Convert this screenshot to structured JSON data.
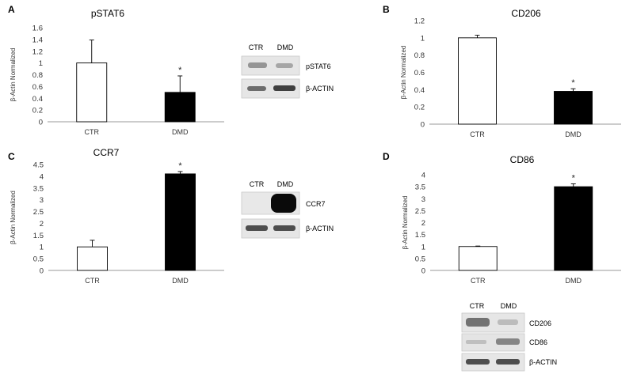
{
  "chart_data": [
    {
      "type": "bar",
      "panel_letter": "A",
      "title": "pSTAT6",
      "ylabel": "β-Actin Normalized",
      "categories": [
        "CTR",
        "DMD"
      ],
      "values": [
        1.0,
        0.5
      ],
      "errors": [
        0.39,
        0.28
      ],
      "significance": [
        "",
        "*"
      ],
      "bar_colors": [
        "#ffffff",
        "#000000"
      ],
      "ylim": [
        0,
        1.6
      ],
      "yticks": [
        "0",
        "0.2",
        "0.4",
        "0.6",
        "0.8",
        "1",
        "1.2",
        "1.4",
        "1.6"
      ],
      "grid": false,
      "blot": {
        "lanes": [
          "CTR",
          "DMD"
        ],
        "rows": [
          "pSTAT6",
          "β-ACTIN"
        ]
      }
    },
    {
      "type": "bar",
      "panel_letter": "B",
      "title": "CD206",
      "ylabel": "β-Actin Normalized",
      "categories": [
        "CTR",
        "DMD"
      ],
      "values": [
        1.0,
        0.38
      ],
      "errors": [
        0.03,
        0.03
      ],
      "significance": [
        "",
        "*"
      ],
      "bar_colors": [
        "#ffffff",
        "#000000"
      ],
      "ylim": [
        0,
        1.2
      ],
      "yticks": [
        "0",
        "0.2",
        "0.4",
        "0.6",
        "0.8",
        "1",
        "1.2"
      ],
      "grid": false
    },
    {
      "type": "bar",
      "panel_letter": "C",
      "title": "CCR7",
      "ylabel": "β-Actin Normalized",
      "categories": [
        "CTR",
        "DMD"
      ],
      "values": [
        1.0,
        4.1
      ],
      "errors": [
        0.28,
        0.1
      ],
      "significance": [
        "",
        "*"
      ],
      "bar_colors": [
        "#ffffff",
        "#000000"
      ],
      "ylim": [
        0,
        4.5
      ],
      "yticks": [
        "0",
        "0.5",
        "1",
        "1.5",
        "2",
        "2.5",
        "3",
        "3.5",
        "4",
        "4.5"
      ],
      "grid": false,
      "blot": {
        "lanes": [
          "CTR",
          "DMD"
        ],
        "rows": [
          "CCR7",
          "β-ACTIN"
        ]
      }
    },
    {
      "type": "bar",
      "panel_letter": "D",
      "title": "CD86",
      "ylabel": "β-Actin Normalized",
      "categories": [
        "CTR",
        "DMD"
      ],
      "values": [
        1.0,
        3.5
      ],
      "errors": [
        0.02,
        0.12
      ],
      "significance": [
        "",
        "*"
      ],
      "bar_colors": [
        "#ffffff",
        "#000000"
      ],
      "ylim": [
        0,
        4
      ],
      "yticks": [
        "0",
        "0.5",
        "1",
        "1.5",
        "2",
        "2.5",
        "3",
        "3.5",
        "4"
      ],
      "grid": false,
      "blot": {
        "lanes": [
          "CTR",
          "DMD"
        ],
        "rows": [
          "CD206",
          "CD86",
          "β-ACTIN"
        ]
      }
    }
  ]
}
